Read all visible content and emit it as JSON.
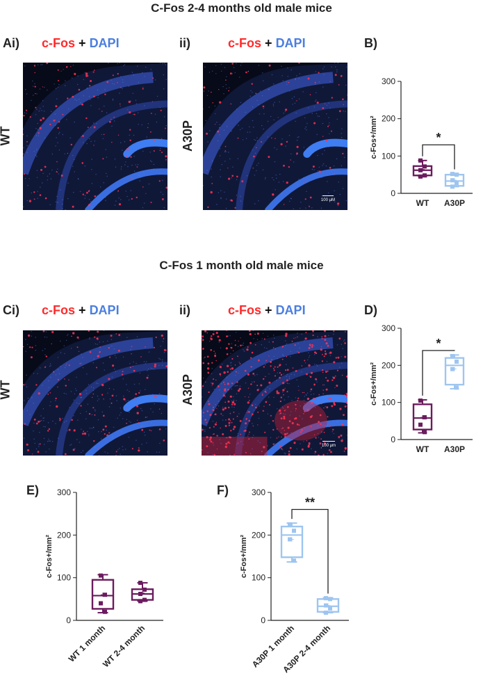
{
  "titles": {
    "top": "C-Fos 2-4 months old male mice",
    "middle": "C-Fos 1 month old male mice"
  },
  "panel_labels": {
    "ai": "Ai)",
    "aii": "ii)",
    "b": "B)",
    "ci": "Ci)",
    "cii": "ii)",
    "d": "D)",
    "e": "E)",
    "f": "F)"
  },
  "stain": {
    "cfos": "c-Fos",
    "plus": "+",
    "dapi": "DAPI"
  },
  "side_labels": {
    "a_wt": "WT",
    "a_a30p": "A30P",
    "c_wt": "WT",
    "c_a30p": "A30P"
  },
  "scale_labels": {
    "a": "100 μM",
    "c": "100 μm"
  },
  "colors": {
    "wt": "#6b1b5e",
    "a30p": "#9ec5f0",
    "cfos_red": "#ff2a2a",
    "dapi_blue": "#4a7ee0"
  },
  "chart_data": [
    {
      "id": "B",
      "type": "box",
      "ylabel": "c-Fos+/mm²",
      "ylim": [
        0,
        300
      ],
      "yticks": [
        0,
        100,
        200,
        300
      ],
      "categories": [
        "WT",
        "A30P"
      ],
      "series": [
        {
          "name": "WT",
          "color": "#6b1b5e",
          "min": 45,
          "q1": 48,
          "median": 62,
          "q3": 73,
          "max": 88,
          "mean": 64,
          "points": [
            88,
            72,
            62,
            48,
            45
          ]
        },
        {
          "name": "A30P",
          "color": "#9ec5f0",
          "min": 18,
          "q1": 20,
          "median": 33,
          "q3": 50,
          "max": 53,
          "mean": 35,
          "points": [
            52,
            50,
            35,
            28,
            18
          ]
        }
      ],
      "significance": {
        "from": 0,
        "to": 1,
        "label": "*",
        "y": 130
      }
    },
    {
      "id": "D",
      "type": "box",
      "ylabel": "c-Fos+/mm²",
      "ylim": [
        0,
        300
      ],
      "yticks": [
        0,
        100,
        200,
        300
      ],
      "categories": [
        "WT",
        "A30P"
      ],
      "series": [
        {
          "name": "WT",
          "color": "#6b1b5e",
          "min": 18,
          "q1": 27,
          "median": 58,
          "q3": 95,
          "max": 107,
          "mean": 60,
          "points": [
            105,
            60,
            40,
            20
          ]
        },
        {
          "name": "A30P",
          "color": "#9ec5f0",
          "min": 137,
          "q1": 148,
          "median": 200,
          "q3": 220,
          "max": 228,
          "mean": 190,
          "points": [
            225,
            210,
            190,
            140
          ]
        }
      ],
      "significance": {
        "from": 0,
        "to": 1,
        "label": "*",
        "y": 240
      }
    },
    {
      "id": "E",
      "type": "box",
      "ylabel": "c-Fos+/mm²",
      "ylim": [
        0,
        300
      ],
      "yticks": [
        0,
        100,
        200,
        300
      ],
      "categories": [
        "WT 1 month",
        "WT 2-4 month"
      ],
      "series": [
        {
          "name": "WT 1 month",
          "color": "#6b1b5e",
          "min": 18,
          "q1": 27,
          "median": 58,
          "q3": 95,
          "max": 107,
          "mean": 60,
          "points": [
            105,
            60,
            40,
            20
          ]
        },
        {
          "name": "WT 2-4 month",
          "color": "#6b1b5e",
          "min": 45,
          "q1": 48,
          "median": 62,
          "q3": 73,
          "max": 88,
          "mean": 64,
          "points": [
            88,
            72,
            62,
            48,
            45
          ]
        }
      ],
      "significance": null
    },
    {
      "id": "F",
      "type": "box",
      "ylabel": "c-Fos+/mm²",
      "ylim": [
        0,
        300
      ],
      "yticks": [
        0,
        100,
        200,
        300
      ],
      "categories": [
        "A30P 1 month",
        "A30P 2-4 month"
      ],
      "series": [
        {
          "name": "A30P 1 month",
          "color": "#9ec5f0",
          "min": 137,
          "q1": 148,
          "median": 200,
          "q3": 220,
          "max": 228,
          "mean": 190,
          "points": [
            225,
            210,
            190,
            140
          ]
        },
        {
          "name": "A30P 2-4 month",
          "color": "#9ec5f0",
          "min": 18,
          "q1": 20,
          "median": 33,
          "q3": 50,
          "max": 53,
          "mean": 35,
          "points": [
            52,
            50,
            35,
            28,
            18
          ]
        }
      ],
      "significance": {
        "from": 0,
        "to": 1,
        "label": "**",
        "y": 260
      }
    }
  ]
}
